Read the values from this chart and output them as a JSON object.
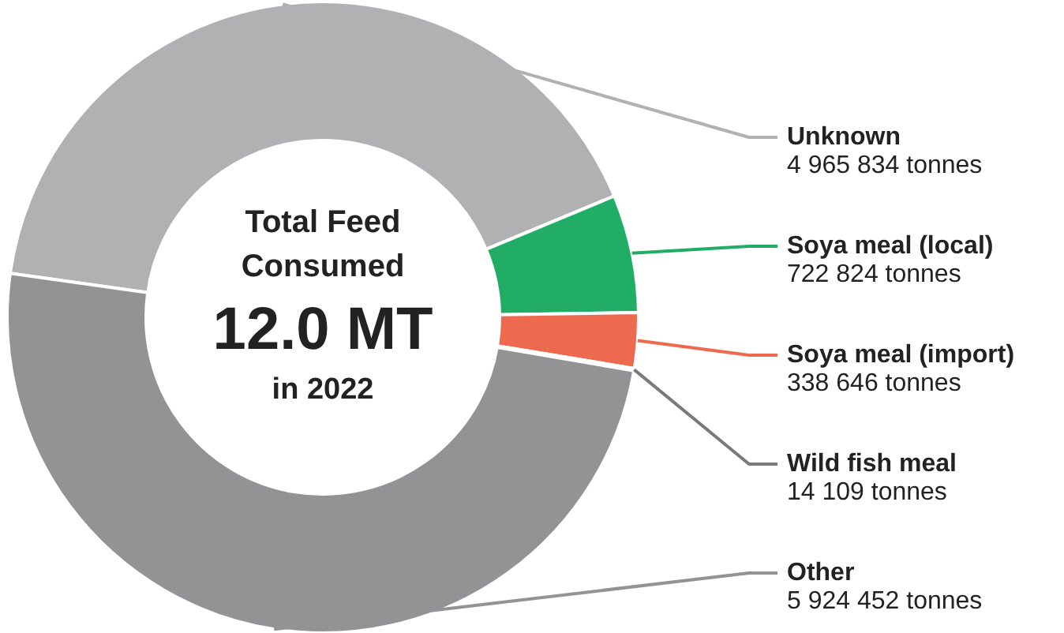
{
  "chart_data": {
    "type": "donut",
    "title": "Total Feed Consumed",
    "annotations": [
      "12.0 MT",
      "in 2022"
    ],
    "categories": [
      "Unknown",
      "Soya meal (local)",
      "Soya meal (import)",
      "Wild fish meal",
      "Other"
    ],
    "values": [
      4965834,
      722824,
      338646,
      14109,
      5924452
    ],
    "colors": [
      "#b1b1b4",
      "#22ad66",
      "#ee6a4f",
      "#7a7a7d",
      "#939396"
    ],
    "value_labels": [
      "4 965 834 tonnes",
      "722 824 tonnes",
      "338 646 tonnes",
      "14 109 tonnes",
      "5 924 452 tonnes"
    ]
  }
}
